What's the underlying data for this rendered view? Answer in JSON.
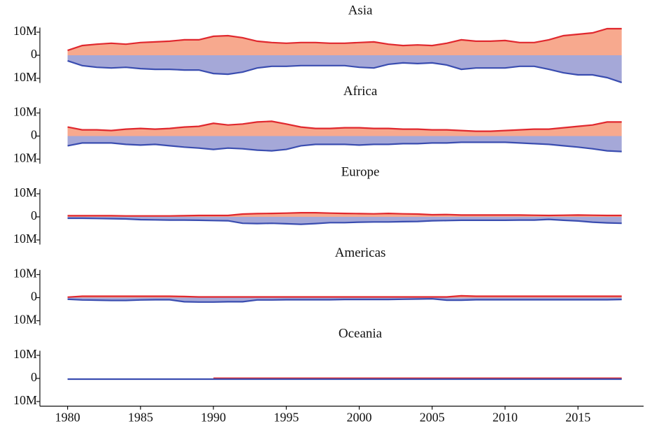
{
  "chart_data": [
    {
      "type": "area",
      "title": "Asia",
      "x": [
        1980,
        1981,
        1982,
        1983,
        1984,
        1985,
        1986,
        1987,
        1988,
        1989,
        1990,
        1991,
        1992,
        1993,
        1994,
        1995,
        1996,
        1997,
        1998,
        1999,
        2000,
        2001,
        2002,
        2003,
        2004,
        2005,
        2006,
        2007,
        2008,
        2009,
        2010,
        2011,
        2012,
        2013,
        2014,
        2015,
        2016,
        2017,
        2018
      ],
      "xlim": [
        1978.1,
        2019.5
      ],
      "ylim": [
        -12000000,
        12000000
      ],
      "yticks": [
        {
          "value": 10000000,
          "label": "10M"
        },
        0,
        {
          "value": -10000000,
          "label": "10M"
        }
      ],
      "series": [
        {
          "color": "#e0282e",
          "fill_color": "#f7a98e",
          "values": [
            2100000,
            4200000,
            4800000,
            5200000,
            4800000,
            5500000,
            5800000,
            6100000,
            6700000,
            6700000,
            8200000,
            8500000,
            7600000,
            6100000,
            5500000,
            5200000,
            5500000,
            5500000,
            5200000,
            5200000,
            5500000,
            5800000,
            4800000,
            4200000,
            4500000,
            4200000,
            5200000,
            6700000,
            6100000,
            6100000,
            6400000,
            5500000,
            5500000,
            6700000,
            8500000,
            9100000,
            9700000,
            11500000,
            11500000
          ]
        },
        {
          "color": "#3a4db0",
          "fill_color": "#a5a8d8",
          "values": [
            -2400000,
            -4500000,
            -5200000,
            -5500000,
            -5200000,
            -5800000,
            -6100000,
            -6100000,
            -6400000,
            -6400000,
            -7900000,
            -8200000,
            -7300000,
            -5500000,
            -4800000,
            -4800000,
            -4500000,
            -4500000,
            -4500000,
            -4500000,
            -5200000,
            -5500000,
            -3900000,
            -3300000,
            -3600000,
            -3300000,
            -4200000,
            -6100000,
            -5500000,
            -5500000,
            -5500000,
            -4800000,
            -4800000,
            -6100000,
            -7600000,
            -8500000,
            -8500000,
            -9700000,
            -11800000
          ]
        }
      ]
    },
    {
      "type": "area",
      "title": "Africa",
      "x": [
        1980,
        1981,
        1982,
        1983,
        1984,
        1985,
        1986,
        1987,
        1988,
        1989,
        1990,
        1991,
        1992,
        1993,
        1994,
        1995,
        1996,
        1997,
        1998,
        1999,
        2000,
        2001,
        2002,
        2003,
        2004,
        2005,
        2006,
        2007,
        2008,
        2009,
        2010,
        2011,
        2012,
        2013,
        2014,
        2015,
        2016,
        2017,
        2018
      ],
      "xlim": [
        1978.1,
        2019.5
      ],
      "ylim": [
        -12000000,
        12000000
      ],
      "yticks": [
        {
          "value": 10000000,
          "label": "10M"
        },
        0,
        {
          "value": -10000000,
          "label": "10M"
        }
      ],
      "series": [
        {
          "color": "#e0282e",
          "fill_color": "#f7a98e",
          "values": [
            3900000,
            2700000,
            2700000,
            2400000,
            3000000,
            3300000,
            3000000,
            3300000,
            3900000,
            4200000,
            5500000,
            4800000,
            5200000,
            6100000,
            6400000,
            5200000,
            3900000,
            3300000,
            3300000,
            3600000,
            3600000,
            3300000,
            3300000,
            3000000,
            3000000,
            2700000,
            2700000,
            2400000,
            2100000,
            2100000,
            2400000,
            2700000,
            3000000,
            3000000,
            3600000,
            4200000,
            4800000,
            6100000,
            6100000
          ]
        },
        {
          "color": "#3a4db0",
          "fill_color": "#a5a8d8",
          "values": [
            -4200000,
            -3000000,
            -3000000,
            -3000000,
            -3600000,
            -3900000,
            -3600000,
            -4200000,
            -4800000,
            -5200000,
            -5800000,
            -5200000,
            -5500000,
            -6100000,
            -6400000,
            -5800000,
            -4200000,
            -3600000,
            -3600000,
            -3600000,
            -3900000,
            -3600000,
            -3600000,
            -3300000,
            -3300000,
            -3000000,
            -3000000,
            -2700000,
            -2700000,
            -2700000,
            -2700000,
            -3000000,
            -3300000,
            -3600000,
            -4200000,
            -4800000,
            -5500000,
            -6400000,
            -6700000
          ]
        }
      ]
    },
    {
      "type": "area",
      "title": "Europe",
      "x": [
        1980,
        1981,
        1982,
        1983,
        1984,
        1985,
        1986,
        1987,
        1988,
        1989,
        1990,
        1991,
        1992,
        1993,
        1994,
        1995,
        1996,
        1997,
        1998,
        1999,
        2000,
        2001,
        2002,
        2003,
        2004,
        2005,
        2006,
        2007,
        2008,
        2009,
        2010,
        2011,
        2012,
        2013,
        2014,
        2015,
        2016,
        2017,
        2018
      ],
      "xlim": [
        1978.1,
        2019.5
      ],
      "ylim": [
        -12000000,
        12000000
      ],
      "yticks": [
        {
          "value": 10000000,
          "label": "10M"
        },
        0,
        {
          "value": -10000000,
          "label": "10M"
        }
      ],
      "series": [
        {
          "color": "#e0282e",
          "fill_color": "#f7a98e",
          "values": [
            500000,
            500000,
            500000,
            500000,
            400000,
            400000,
            400000,
            400000,
            500000,
            600000,
            600000,
            600000,
            1200000,
            1400000,
            1500000,
            1600000,
            1800000,
            1800000,
            1600000,
            1500000,
            1400000,
            1300000,
            1500000,
            1300000,
            1200000,
            900000,
            1000000,
            800000,
            800000,
            800000,
            800000,
            800000,
            700000,
            600000,
            700000,
            800000,
            700000,
            600000,
            600000
          ]
        },
        {
          "color": "#3a4db0",
          "fill_color": "#a5a8d8",
          "values": [
            -600000,
            -600000,
            -700000,
            -800000,
            -900000,
            -1200000,
            -1300000,
            -1400000,
            -1400000,
            -1500000,
            -1600000,
            -1700000,
            -2800000,
            -2900000,
            -2800000,
            -3000000,
            -3200000,
            -2900000,
            -2500000,
            -2500000,
            -2300000,
            -2200000,
            -2200000,
            -2100000,
            -2000000,
            -1700000,
            -1600000,
            -1500000,
            -1500000,
            -1500000,
            -1500000,
            -1400000,
            -1400000,
            -1100000,
            -1500000,
            -1800000,
            -2300000,
            -2600000,
            -2800000
          ]
        }
      ]
    },
    {
      "type": "area",
      "title": "Americas",
      "x": [
        1980,
        1981,
        1982,
        1983,
        1984,
        1985,
        1986,
        1987,
        1988,
        1989,
        1990,
        1991,
        1992,
        1993,
        1994,
        1995,
        1996,
        1997,
        1998,
        1999,
        2000,
        2001,
        2002,
        2003,
        2004,
        2005,
        2006,
        2007,
        2008,
        2009,
        2010,
        2011,
        2012,
        2013,
        2014,
        2015,
        2016,
        2017,
        2018
      ],
      "xlim": [
        1978.1,
        2019.5
      ],
      "ylim": [
        -12000000,
        12000000
      ],
      "yticks": [
        {
          "value": 10000000,
          "label": "10M"
        },
        0,
        {
          "value": -10000000,
          "label": "10M"
        }
      ],
      "series": [
        {
          "color": "#e0282e",
          "fill_color": "#f7a98e",
          "values": [
            200000,
            600000,
            600000,
            600000,
            600000,
            600000,
            600000,
            600000,
            500000,
            300000,
            300000,
            300000,
            300000,
            300000,
            300000,
            300000,
            300000,
            300000,
            300000,
            300000,
            300000,
            300000,
            300000,
            300000,
            300000,
            300000,
            300000,
            800000,
            600000,
            600000,
            600000,
            600000,
            600000,
            600000,
            600000,
            600000,
            600000,
            600000,
            600000
          ]
        },
        {
          "color": "#3a4db0",
          "fill_color": "#a5a8d8",
          "values": [
            -700000,
            -1000000,
            -1100000,
            -1200000,
            -1200000,
            -1000000,
            -900000,
            -900000,
            -1800000,
            -1900000,
            -1900000,
            -1800000,
            -1800000,
            -1000000,
            -1000000,
            -900000,
            -900000,
            -900000,
            -900000,
            -800000,
            -800000,
            -800000,
            -800000,
            -700000,
            -600000,
            -500000,
            -1100000,
            -1100000,
            -900000,
            -900000,
            -900000,
            -900000,
            -900000,
            -900000,
            -900000,
            -900000,
            -900000,
            -900000,
            -800000
          ]
        }
      ]
    },
    {
      "type": "area",
      "title": "Oceania",
      "x": [
        1980,
        1981,
        1982,
        1983,
        1984,
        1985,
        1986,
        1987,
        1988,
        1989,
        1990,
        1991,
        1992,
        1993,
        1994,
        1995,
        1996,
        1997,
        1998,
        1999,
        2000,
        2001,
        2002,
        2003,
        2004,
        2005,
        2006,
        2007,
        2008,
        2009,
        2010,
        2011,
        2012,
        2013,
        2014,
        2015,
        2016,
        2017,
        2018
      ],
      "xlim": [
        1978.1,
        2019.5
      ],
      "ylim": [
        -12000000,
        12000000
      ],
      "yticks": [
        {
          "value": 10000000,
          "label": "10M"
        },
        0,
        {
          "value": -10000000,
          "label": "10M"
        }
      ],
      "xticks": [
        1980,
        1985,
        1990,
        1995,
        2000,
        2005,
        2010,
        2015
      ],
      "series": [
        {
          "color": "#e0282e",
          "fill_color": "#f7a98e",
          "values": [
            null,
            null,
            null,
            null,
            null,
            null,
            null,
            null,
            null,
            null,
            100000,
            100000,
            100000,
            100000,
            100000,
            100000,
            100000,
            100000,
            100000,
            100000,
            100000,
            100000,
            100000,
            100000,
            100000,
            100000,
            100000,
            100000,
            100000,
            100000,
            100000,
            100000,
            100000,
            100000,
            100000,
            100000,
            100000,
            100000,
            100000
          ]
        },
        {
          "color": "#3a4db0",
          "fill_color": "#a5a8d8",
          "values": [
            -300000,
            -300000,
            -300000,
            -300000,
            -300000,
            -300000,
            -300000,
            -300000,
            -300000,
            -300000,
            -300000,
            -300000,
            -300000,
            -300000,
            -300000,
            -300000,
            -300000,
            -300000,
            -300000,
            -300000,
            -300000,
            -300000,
            -300000,
            -300000,
            -300000,
            -300000,
            -300000,
            -300000,
            -300000,
            -300000,
            -300000,
            -300000,
            -300000,
            -300000,
            -300000,
            -300000,
            -300000,
            -300000,
            -300000
          ]
        }
      ]
    }
  ]
}
